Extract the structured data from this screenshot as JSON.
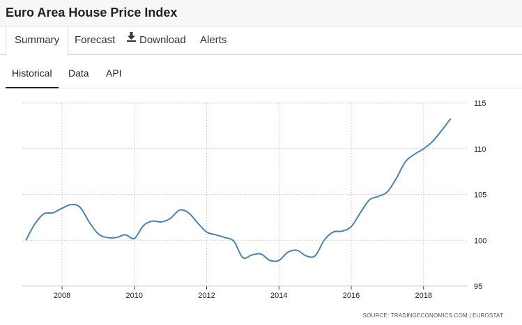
{
  "header": {
    "title": "Euro Area House Price Index"
  },
  "tabs": [
    {
      "label": "Summary",
      "active": true
    },
    {
      "label": "Forecast",
      "active": false
    },
    {
      "label": "Download",
      "icon": "download-icon",
      "active": false
    },
    {
      "label": "Alerts",
      "active": false
    }
  ],
  "subtabs": [
    {
      "label": "Historical",
      "active": true
    },
    {
      "label": "Data",
      "active": false
    },
    {
      "label": "API",
      "active": false
    }
  ],
  "source": "SOURCE: TRADINGECONOMICS.COM  |  EUROSTAT",
  "colors": {
    "line": "#4682b4",
    "grid": "#cfcfcf"
  },
  "chart_data": {
    "type": "line",
    "title": "",
    "xlabel": "",
    "ylabel": "",
    "xlim": [
      2006.9,
      2019.2
    ],
    "ylim": [
      95,
      115
    ],
    "x_ticks": [
      "2008",
      "2010",
      "2012",
      "2014",
      "2016",
      "2018"
    ],
    "y_ticks": [
      "95",
      "100",
      "105",
      "110",
      "115"
    ],
    "grid": true,
    "axis_side": "right",
    "series": [
      {
        "x": [
          2007.0,
          2007.25,
          2007.5,
          2007.75,
          2008.0,
          2008.25,
          2008.5,
          2008.75,
          2009.0,
          2009.25,
          2009.5,
          2009.75,
          2010.0,
          2010.25,
          2010.5,
          2010.75,
          2011.0,
          2011.25,
          2011.5,
          2011.75,
          2012.0,
          2012.25,
          2012.5,
          2012.75,
          2013.0,
          2013.25,
          2013.5,
          2013.75,
          2014.0,
          2014.25,
          2014.5,
          2014.75,
          2015.0,
          2015.25,
          2015.5,
          2015.75,
          2016.0,
          2016.25,
          2016.5,
          2016.75,
          2017.0,
          2017.25,
          2017.5,
          2017.75,
          2018.0,
          2018.25,
          2018.5,
          2018.75
        ],
        "values": [
          100.0,
          101.8,
          102.9,
          103.0,
          103.5,
          103.9,
          103.6,
          102.0,
          100.7,
          100.3,
          100.3,
          100.6,
          100.2,
          101.6,
          102.1,
          102.0,
          102.4,
          103.3,
          103.0,
          101.9,
          100.9,
          100.6,
          100.3,
          99.9,
          98.1,
          98.4,
          98.5,
          97.8,
          97.8,
          98.7,
          98.9,
          98.3,
          98.3,
          100.0,
          100.9,
          101.0,
          101.5,
          103.0,
          104.4,
          104.8,
          105.3,
          106.8,
          108.6,
          109.4,
          110.0,
          110.8,
          112.0,
          113.3
        ]
      }
    ]
  }
}
